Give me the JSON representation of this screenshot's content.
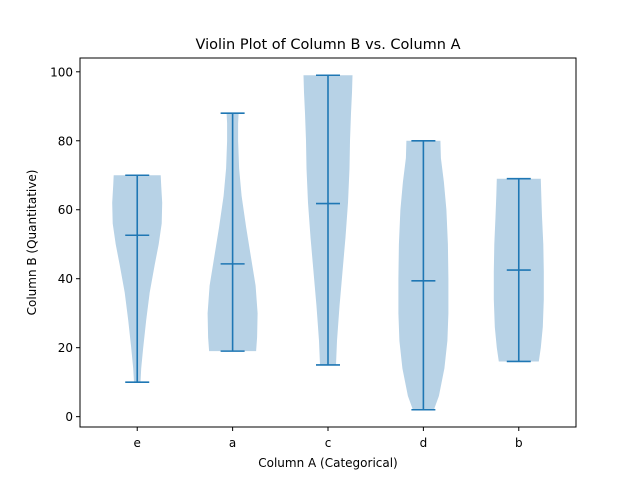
{
  "chart_data": {
    "type": "violin",
    "title": "Violin Plot of Column B vs. Column A",
    "xlabel": "Column A (Categorical)",
    "ylabel": "Column B (Quantitative)",
    "ylim": [
      -3,
      104
    ],
    "yticks": [
      0,
      20,
      40,
      60,
      80,
      100
    ],
    "grid": false,
    "colors": {
      "body": "#b7d2e6",
      "line": "#1f77b4"
    },
    "categories": [
      "e",
      "a",
      "c",
      "d",
      "b"
    ],
    "violins": [
      {
        "category": "e",
        "min": 10,
        "max": 70,
        "mean": 52.6,
        "density": [
          [
            10,
            0.13
          ],
          [
            14,
            0.16
          ],
          [
            20,
            0.24
          ],
          [
            28,
            0.36
          ],
          [
            36,
            0.5
          ],
          [
            44,
            0.7
          ],
          [
            50,
            0.86
          ],
          [
            56,
            0.98
          ],
          [
            62,
            1.0
          ],
          [
            67,
            0.96
          ],
          [
            70,
            0.94
          ]
        ]
      },
      {
        "category": "a",
        "min": 19,
        "max": 88,
        "mean": 44.3,
        "density": [
          [
            19,
            0.94
          ],
          [
            23,
            0.98
          ],
          [
            30,
            1.0
          ],
          [
            38,
            0.92
          ],
          [
            46,
            0.74
          ],
          [
            55,
            0.54
          ],
          [
            64,
            0.36
          ],
          [
            72,
            0.26
          ],
          [
            80,
            0.22
          ],
          [
            85,
            0.22
          ],
          [
            88,
            0.24
          ]
        ]
      },
      {
        "category": "c",
        "min": 15,
        "max": 99,
        "mean": 61.8,
        "density": [
          [
            15,
            0.32
          ],
          [
            22,
            0.36
          ],
          [
            32,
            0.46
          ],
          [
            42,
            0.58
          ],
          [
            52,
            0.7
          ],
          [
            62,
            0.8
          ],
          [
            72,
            0.86
          ],
          [
            80,
            0.88
          ],
          [
            88,
            0.92
          ],
          [
            94,
            0.96
          ],
          [
            99,
            0.98
          ]
        ]
      },
      {
        "category": "d",
        "min": 2,
        "max": 80,
        "mean": 39.4,
        "density": [
          [
            2,
            0.42
          ],
          [
            6,
            0.62
          ],
          [
            14,
            0.84
          ],
          [
            22,
            0.96
          ],
          [
            30,
            1.0
          ],
          [
            40,
            1.0
          ],
          [
            50,
            0.98
          ],
          [
            60,
            0.92
          ],
          [
            68,
            0.82
          ],
          [
            75,
            0.7
          ],
          [
            80,
            0.68
          ]
        ]
      },
      {
        "category": "b",
        "min": 16,
        "max": 69,
        "mean": 42.5,
        "density": [
          [
            16,
            0.8
          ],
          [
            20,
            0.88
          ],
          [
            26,
            0.96
          ],
          [
            34,
            1.0
          ],
          [
            42,
            1.0
          ],
          [
            50,
            0.98
          ],
          [
            58,
            0.93
          ],
          [
            64,
            0.9
          ],
          [
            69,
            0.88
          ]
        ]
      }
    ]
  }
}
